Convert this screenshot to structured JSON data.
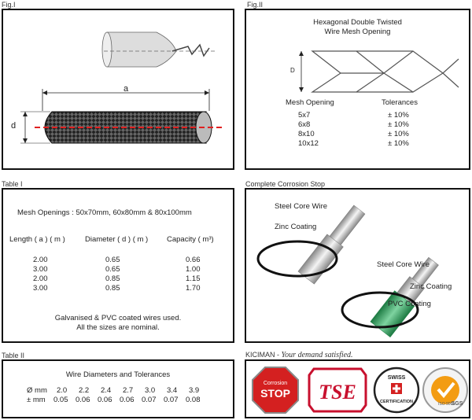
{
  "captions": {
    "fig1": "Fig.I",
    "fig2": "Fig.II",
    "table1": "Table I",
    "corrosion": "Complete Corrosion Stop",
    "table2": "Table II",
    "brand": "KICIMAN",
    "slogan": "Your demand satisfied."
  },
  "fig1": {
    "label_a": "a",
    "label_d": "d"
  },
  "fig2": {
    "title_line1": "Hexagonal Double Twisted",
    "title_line2": "Wire Mesh Opening",
    "label_d": "D",
    "col_opening": "Mesh Opening",
    "col_tolerance": "Tolerances",
    "rows": [
      {
        "opening": "5x7",
        "tolerance": "± 10%"
      },
      {
        "opening": "6x8",
        "tolerance": "± 10%"
      },
      {
        "opening": "8x10",
        "tolerance": "± 10%"
      },
      {
        "opening": "10x12",
        "tolerance": "± 10%"
      }
    ]
  },
  "table1": {
    "openings": "Mesh Openings : 50x70mm, 60x80mm & 80x100mm",
    "head_length": "Length ( a ) ( m )",
    "head_diameter": "Diameter ( d ) ( m )",
    "head_capacity": "Capacity ( m³)",
    "rows": [
      {
        "length": "2.00",
        "diameter": "0.65",
        "capacity": "0.66"
      },
      {
        "length": "3.00",
        "diameter": "0.65",
        "capacity": "1.00"
      },
      {
        "length": "2.00",
        "diameter": "0.85",
        "capacity": "1.15"
      },
      {
        "length": "3.00",
        "diameter": "0.85",
        "capacity": "1.70"
      }
    ],
    "note1": "Galvanised & PVC coated wires used.",
    "note2": "All the sizes are nominal."
  },
  "corrosion": {
    "steel1": "Steel Core Wire",
    "zinc1": "Zinc Coating",
    "steel2": "Steel Core Wire",
    "zinc2": "Zinc Coating",
    "pvc": "PVC Coating"
  },
  "table2": {
    "title": "Wire Diameters and Tolerances",
    "row1_label": "Ø mm",
    "row2_label": "± mm",
    "diameters": [
      "2.0",
      "2.2",
      "2.4",
      "2.7",
      "3.0",
      "3.4",
      "3.9"
    ],
    "tolerances": [
      "0.05",
      "0.06",
      "0.06",
      "0.06",
      "0.07",
      "0.07",
      "0.08"
    ]
  },
  "logos": {
    "stop_top": "Corrosion",
    "stop_main": "STOP",
    "tse": "TSE",
    "swiss_top": "SWISS",
    "swiss_bottom": "CERTIFICATION",
    "iso": "ISO 9001",
    "sgs": "SGS"
  },
  "colors": {
    "dash_red": "#e02020",
    "stop_red": "#d42020",
    "tse_red": "#c8102e",
    "pvc_green": "#2e9e5a",
    "sgs_orange": "#f39c12"
  }
}
